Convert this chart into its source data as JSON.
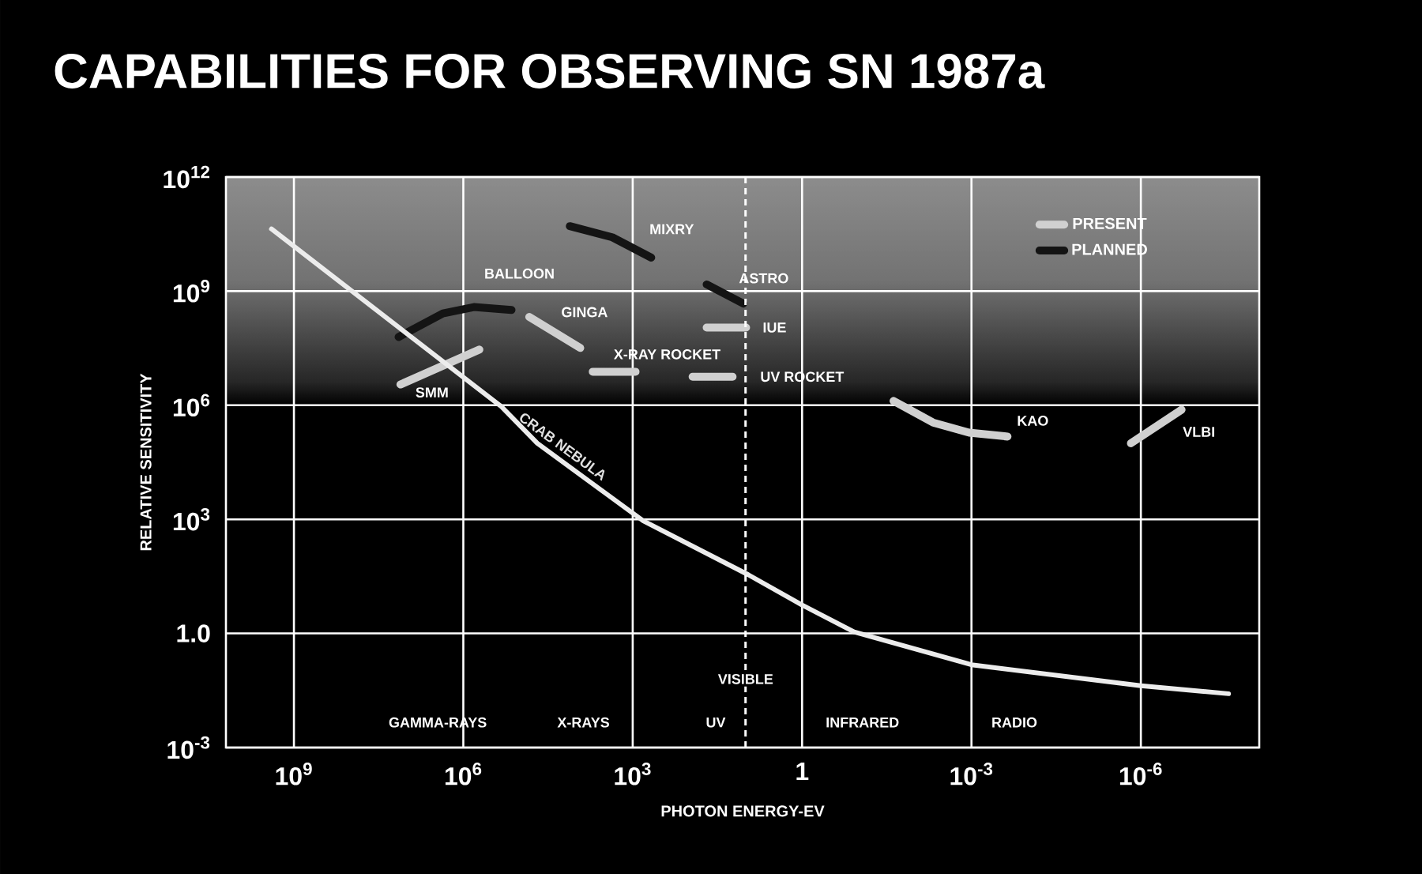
{
  "chart_data": {
    "type": "line",
    "title": "CAPABILITIES FOR OBSERVING SN 1987a",
    "xlabel": "PHOTON ENERGY-EV",
    "ylabel": "RELATIVE SENSITIVITY",
    "log": "xy",
    "grid": true,
    "legend": "top right",
    "xlim": [
      16000000000.0,
      8e-09
    ],
    "ylim": [
      0.001,
      1000000000000.0
    ],
    "xticks": [
      {
        "value": 1000000000.0,
        "label": "10$^{9}$"
      },
      {
        "value": 1000000.0,
        "label": "10$^{6}$"
      },
      {
        "value": 1000.0,
        "label": "10$^{3}$"
      },
      1,
      {
        "value": 0.001,
        "label": "10$^{-3}$"
      },
      {
        "value": 1e-06,
        "label": "10$^{-6}$"
      }
    ],
    "yticks": [
      {
        "value": 0.001,
        "label": "10$^{-3}$"
      },
      {
        "value": 1,
        "label": "1.0"
      },
      {
        "value": 1000.0,
        "label": "10$^{3}$"
      },
      {
        "value": 1000000.0,
        "label": "10$^{6}$"
      },
      {
        "value": 1000000000.0,
        "label": "10$^{9}$"
      },
      {
        "value": 1000000000000.0,
        "label": "10$^{12}$"
      }
    ],
    "series": [
      {
        "name": "PRESENT",
        "color": "#d0d0d0",
        "x": [
          13000000.0,
          520000.0,
          null,
          68000.0,
          8500.0,
          null,
          5100.0,
          890,
          null,
          49,
          9.8,
          null,
          87,
          17,
          null,
          0.024,
          0.0048,
          0.0011,
          0.00023,
          null,
          1.5e-06,
          1.9e-07
        ],
        "values": [
          3500000.0,
          29000000.0,
          null,
          210000000.0,
          32000000.0,
          null,
          7600000.0,
          7600000.0,
          null,
          110000000.0,
          110000000.0,
          null,
          5600000.0,
          5600000.0,
          null,
          1300000.0,
          350000.0,
          190000.0,
          150000.0,
          null,
          100000.0,
          760000.0
        ]
      },
      {
        "name": "PLANNED",
        "color": "#141414",
        "x": [
          14000000.0,
          2300000.0,
          650000.0,
          140000.0,
          null,
          13000.0,
          2300.0,
          470,
          null,
          49,
          11
        ],
        "values": [
          62000000.0,
          260000000.0,
          380000000.0,
          320000000.0,
          null,
          51000000000.0,
          26000000000.0,
          7600000000.0,
          null,
          1500000000.0,
          470000000.0
        ]
      },
      {
        "name": "CRAB NEBULA",
        "color": "#ececec",
        "x": [
          2500000000.0,
          210000.0,
          49000.0,
          650,
          9,
          1,
          0.12,
          0.001,
          1e-06,
          2.8e-08
        ],
        "values": [
          43000000000.0,
          910000.0,
          100000.0,
          910,
          35,
          5.6,
          1.1,
          0.15,
          0.042,
          0.026
        ]
      }
    ],
    "ref_lines": [
      {
        "axis": "x",
        "value": 10,
        "label": "VISIBLE",
        "color": "#ffffff",
        "line_style": "dashed"
      }
    ],
    "annotations": [
      {
        "text": "MIXRY",
        "x": 470,
        "y": 7600000000.0
      },
      {
        "text": "BALLOON",
        "x": 140000.0,
        "y": 320000000.0
      },
      {
        "text": "GINGA",
        "x": 68000.0,
        "y": 210000000.0
      },
      {
        "text": "ASTRO",
        "x": 11,
        "y": 470000000.0
      },
      {
        "text": "IUE",
        "x": 9.8,
        "y": 110000000.0
      },
      {
        "text": "X-RAY ROCKET",
        "x": 890,
        "y": 7600000.0
      },
      {
        "text": "UV ROCKET",
        "x": 17,
        "y": 5600000.0
      },
      {
        "text": "SMM",
        "x": 13000000.0,
        "y": 3500000.0
      },
      {
        "text": "KAO",
        "x": 0.00023,
        "y": 150000.0
      },
      {
        "text": "VLBI",
        "x": 1.9e-07,
        "y": 760000.0
      },
      "GAMMA-RAYS",
      "X-RAYS",
      "UV",
      "INFRARED",
      "RADIO"
    ]
  }
}
